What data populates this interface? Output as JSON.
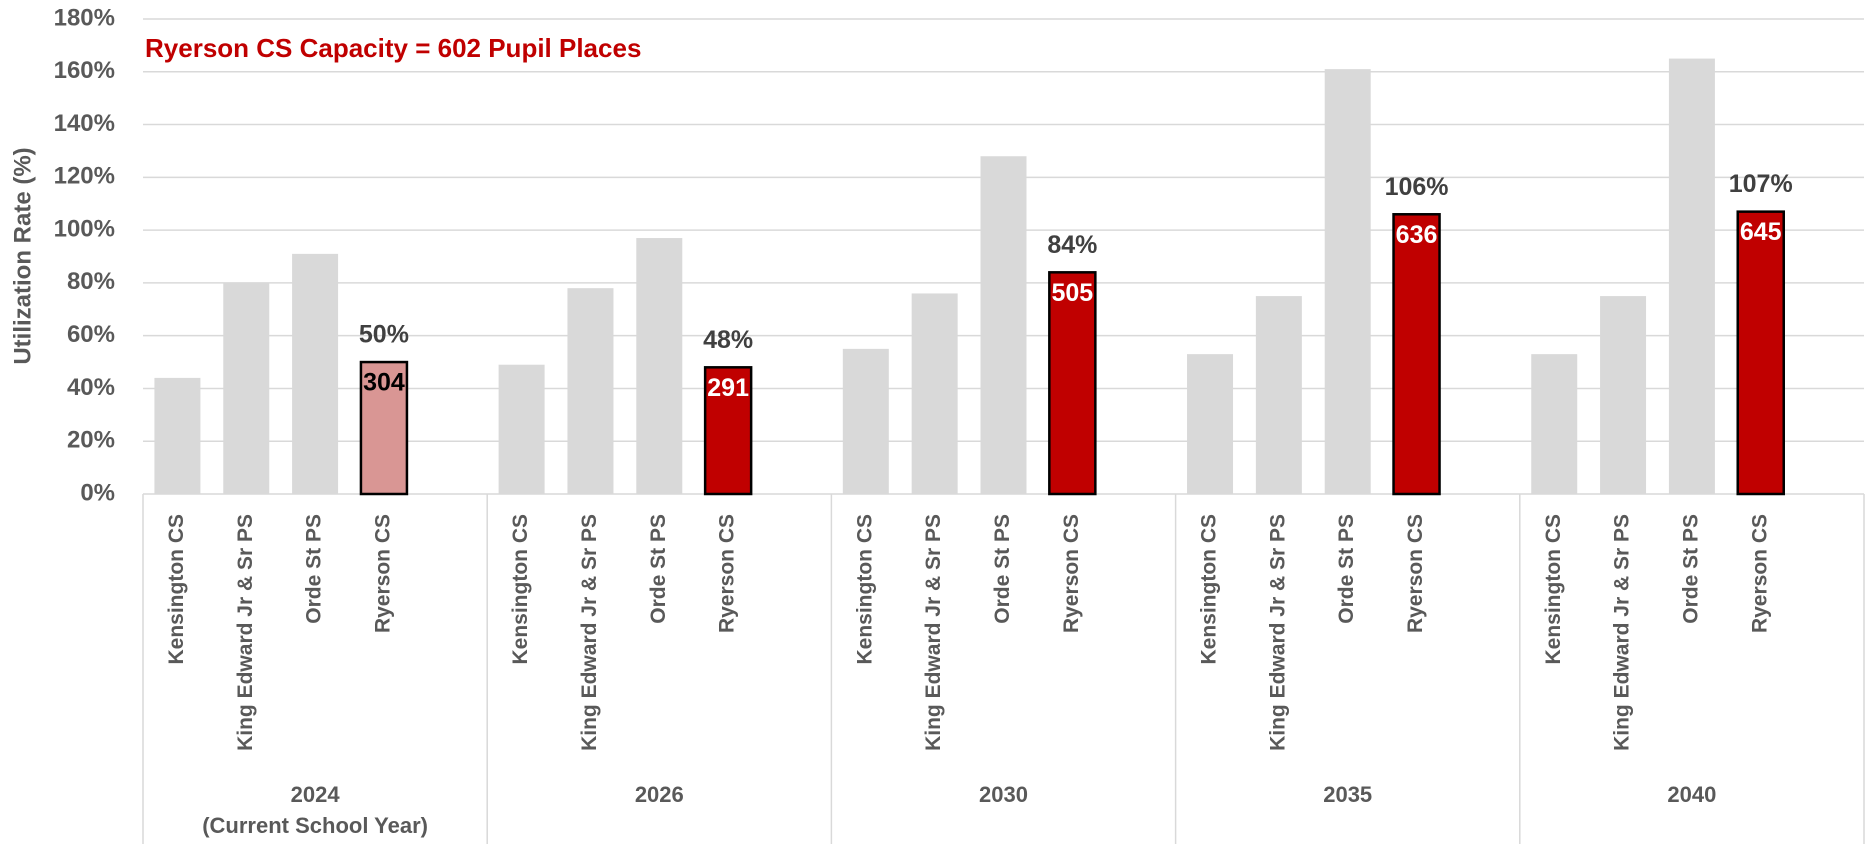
{
  "chart_data": {
    "type": "bar",
    "annotation": "Ryerson CS Capacity = 602 Pupil Places",
    "y_label": "Utilization Rate (%)",
    "categories": [
      "2024",
      "2026",
      "2030",
      "2035",
      "2040"
    ],
    "category_sublabels": [
      "(Current School Year)",
      null,
      null,
      null,
      null
    ],
    "series": [
      {
        "name": "Kensington CS",
        "color": "#d9d9d9",
        "values": [
          44,
          49,
          55,
          53,
          53
        ]
      },
      {
        "name": "King Edward Jr & Sr PS",
        "color": "#d9d9d9",
        "values": [
          80,
          78,
          76,
          75,
          75
        ]
      },
      {
        "name": "Orde St PS",
        "color": "#d9d9d9",
        "values": [
          91,
          97,
          128,
          161,
          165
        ]
      },
      {
        "name": "Ryerson CS",
        "colors": [
          "#d99694",
          "#c00000",
          "#c00000",
          "#c00000",
          "#c00000"
        ],
        "stroke": "#000000",
        "values": [
          50,
          48,
          84,
          106,
          107
        ],
        "value_labels": [
          "50%",
          "48%",
          "84%",
          "106%",
          "107%"
        ],
        "enrolment": [
          304,
          291,
          505,
          636,
          645
        ],
        "enrolment_label_colors": [
          "#000000",
          "#ffffff",
          "#ffffff",
          "#ffffff",
          "#ffffff"
        ]
      }
    ],
    "ylim": [
      0,
      180
    ],
    "yticks": [
      {
        "value": 0,
        "label": "0%"
      },
      {
        "value": 20,
        "label": "20%"
      },
      {
        "value": 40,
        "label": "40%"
      },
      {
        "value": 60,
        "label": "60%"
      },
      {
        "value": 80,
        "label": "80%"
      },
      {
        "value": 100,
        "label": "100%"
      },
      {
        "value": 120,
        "label": "120%"
      },
      {
        "value": 140,
        "label": "140%"
      },
      {
        "value": 160,
        "label": "160%"
      },
      {
        "value": 180,
        "label": "180%"
      }
    ],
    "grid": true
  }
}
